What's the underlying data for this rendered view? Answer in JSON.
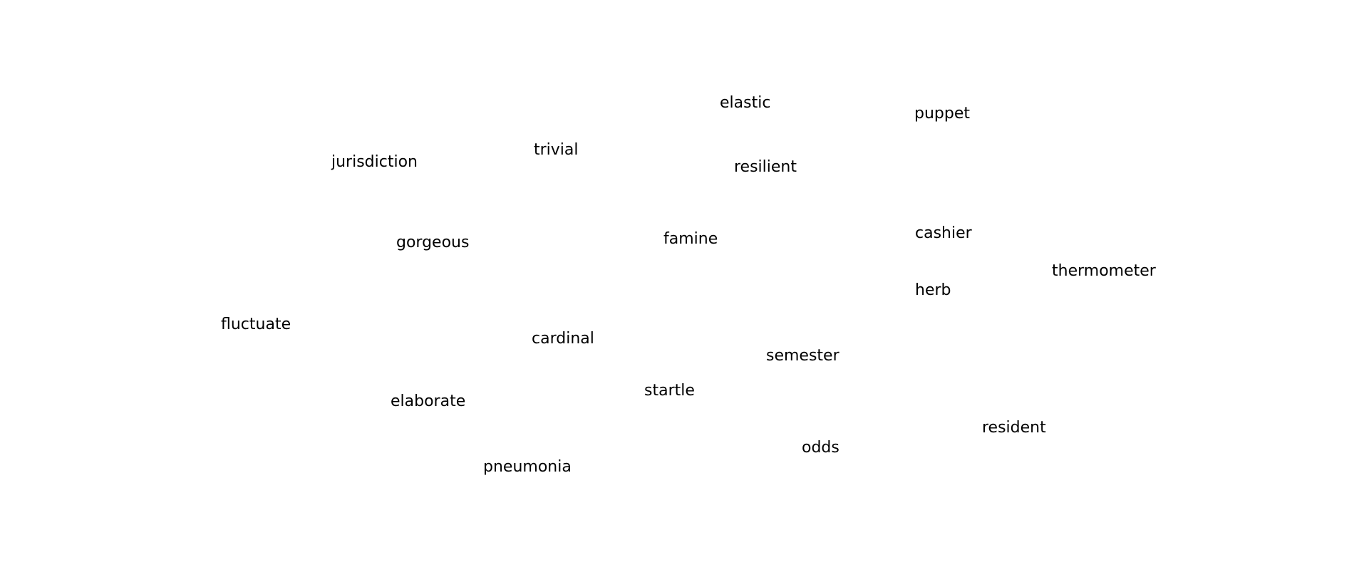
{
  "words": {
    "elastic": "elastic",
    "puppet": "puppet",
    "trivial": "trivial",
    "jurisdiction": "jurisdiction",
    "resilient": "resilient",
    "cashier": "cashier",
    "famine": "famine",
    "gorgeous": "gorgeous",
    "thermometer": "thermometer",
    "herb": "herb",
    "fluctuate": "fluctuate",
    "cardinal": "cardinal",
    "semester": "semester",
    "startle": "startle",
    "elaborate": "elaborate",
    "resident": "resident",
    "odds": "odds",
    "pneumonia": "pneumonia"
  },
  "colors": {
    "background": "#ffffff",
    "text": "#000000"
  }
}
